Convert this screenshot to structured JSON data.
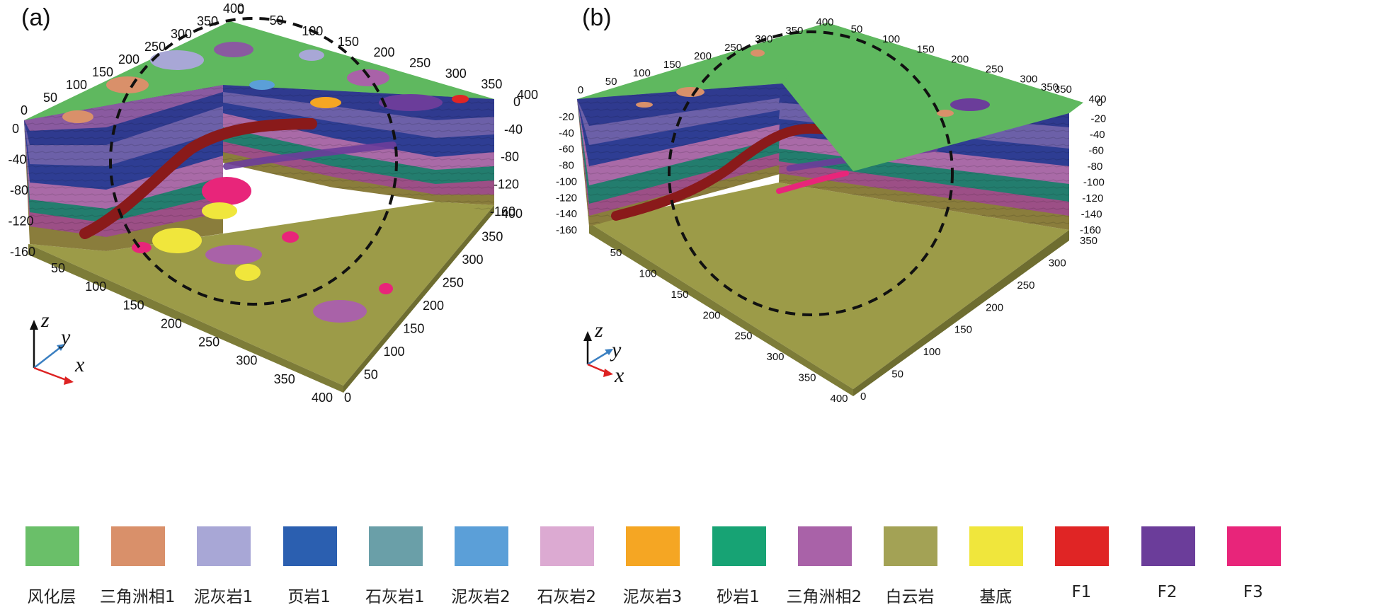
{
  "panels": [
    {
      "label": "(a)",
      "top_x_ticks": [
        "0",
        "50",
        "100",
        "150",
        "200",
        "250",
        "300",
        "350",
        "400"
      ],
      "top_y_ticks": [
        "0",
        "50",
        "100",
        "150",
        "200",
        "250",
        "300",
        "350",
        "400"
      ],
      "front_x_ticks": [
        "50",
        "100",
        "150",
        "200",
        "250",
        "300",
        "350",
        "400"
      ],
      "front_y_ticks": [
        "0",
        "50",
        "100",
        "150",
        "200",
        "250",
        "300",
        "350",
        "400"
      ],
      "left_z_ticks": [
        "0",
        "-40",
        "-80",
        "-120",
        "-160"
      ],
      "right_z_ticks": [
        "0",
        "-40",
        "-80",
        "-120",
        "-160"
      ],
      "axis_letters": {
        "z": "z",
        "y": "y",
        "x": "x"
      }
    },
    {
      "label": "(b)",
      "top_x_ticks": [
        "0",
        "50",
        "100",
        "150",
        "200",
        "250",
        "300",
        "350",
        "400"
      ],
      "top_y_ticks": [
        "50",
        "100",
        "150",
        "200",
        "250",
        "300",
        "350",
        "400"
      ],
      "top_y_extra": "350",
      "front_x_ticks": [
        "50",
        "100",
        "150",
        "200",
        "250",
        "300",
        "350",
        "400"
      ],
      "front_y_ticks": [
        "0",
        "50",
        "100",
        "150",
        "200",
        "250",
        "300",
        "350"
      ],
      "left_z_ticks": [
        "-20",
        "-40",
        "-60",
        "-80",
        "-100",
        "-120",
        "-140",
        "-160"
      ],
      "right_z_ticks": [
        "0",
        "-20",
        "-40",
        "-60",
        "-80",
        "-100",
        "-120",
        "-140",
        "-160"
      ],
      "axis_letters": {
        "z": "z",
        "y": "y",
        "x": "x"
      }
    }
  ],
  "legend": [
    {
      "label": "风化层",
      "color": "#6abf69"
    },
    {
      "label": "三角洲相1",
      "color": "#d9906a"
    },
    {
      "label": "泥灰岩1",
      "color": "#a8a7d6"
    },
    {
      "label": "页岩1",
      "color": "#2b5fb0"
    },
    {
      "label": "石灰岩1",
      "color": "#6a9fa8"
    },
    {
      "label": "泥灰岩2",
      "color": "#5b9fd8"
    },
    {
      "label": "石灰岩2",
      "color": "#dcaad2"
    },
    {
      "label": "泥灰岩3",
      "color": "#f5a623"
    },
    {
      "label": "砂岩1",
      "color": "#17a374"
    },
    {
      "label": "三角洲相2",
      "color": "#a962a8"
    },
    {
      "label": "白云岩",
      "color": "#a3a255"
    },
    {
      "label": "基底",
      "color": "#f0e63c"
    },
    {
      "label": "F1",
      "color": "#e02525"
    },
    {
      "label": "F2",
      "color": "#6b3d9a"
    },
    {
      "label": "F3",
      "color": "#e8257a"
    }
  ],
  "colors": {
    "top_surface": "#5fb85f",
    "floor": "#9c9b48",
    "floor_dark": "#7d7c38",
    "fault_red": "#8a1a1a",
    "layers": [
      "#5fb85f",
      "#8a5aa0",
      "#2f3a8f",
      "#6c60a8",
      "#2e3d93",
      "#a96aa7",
      "#237d6e",
      "#9c4f86",
      "#8a7d3c"
    ]
  }
}
